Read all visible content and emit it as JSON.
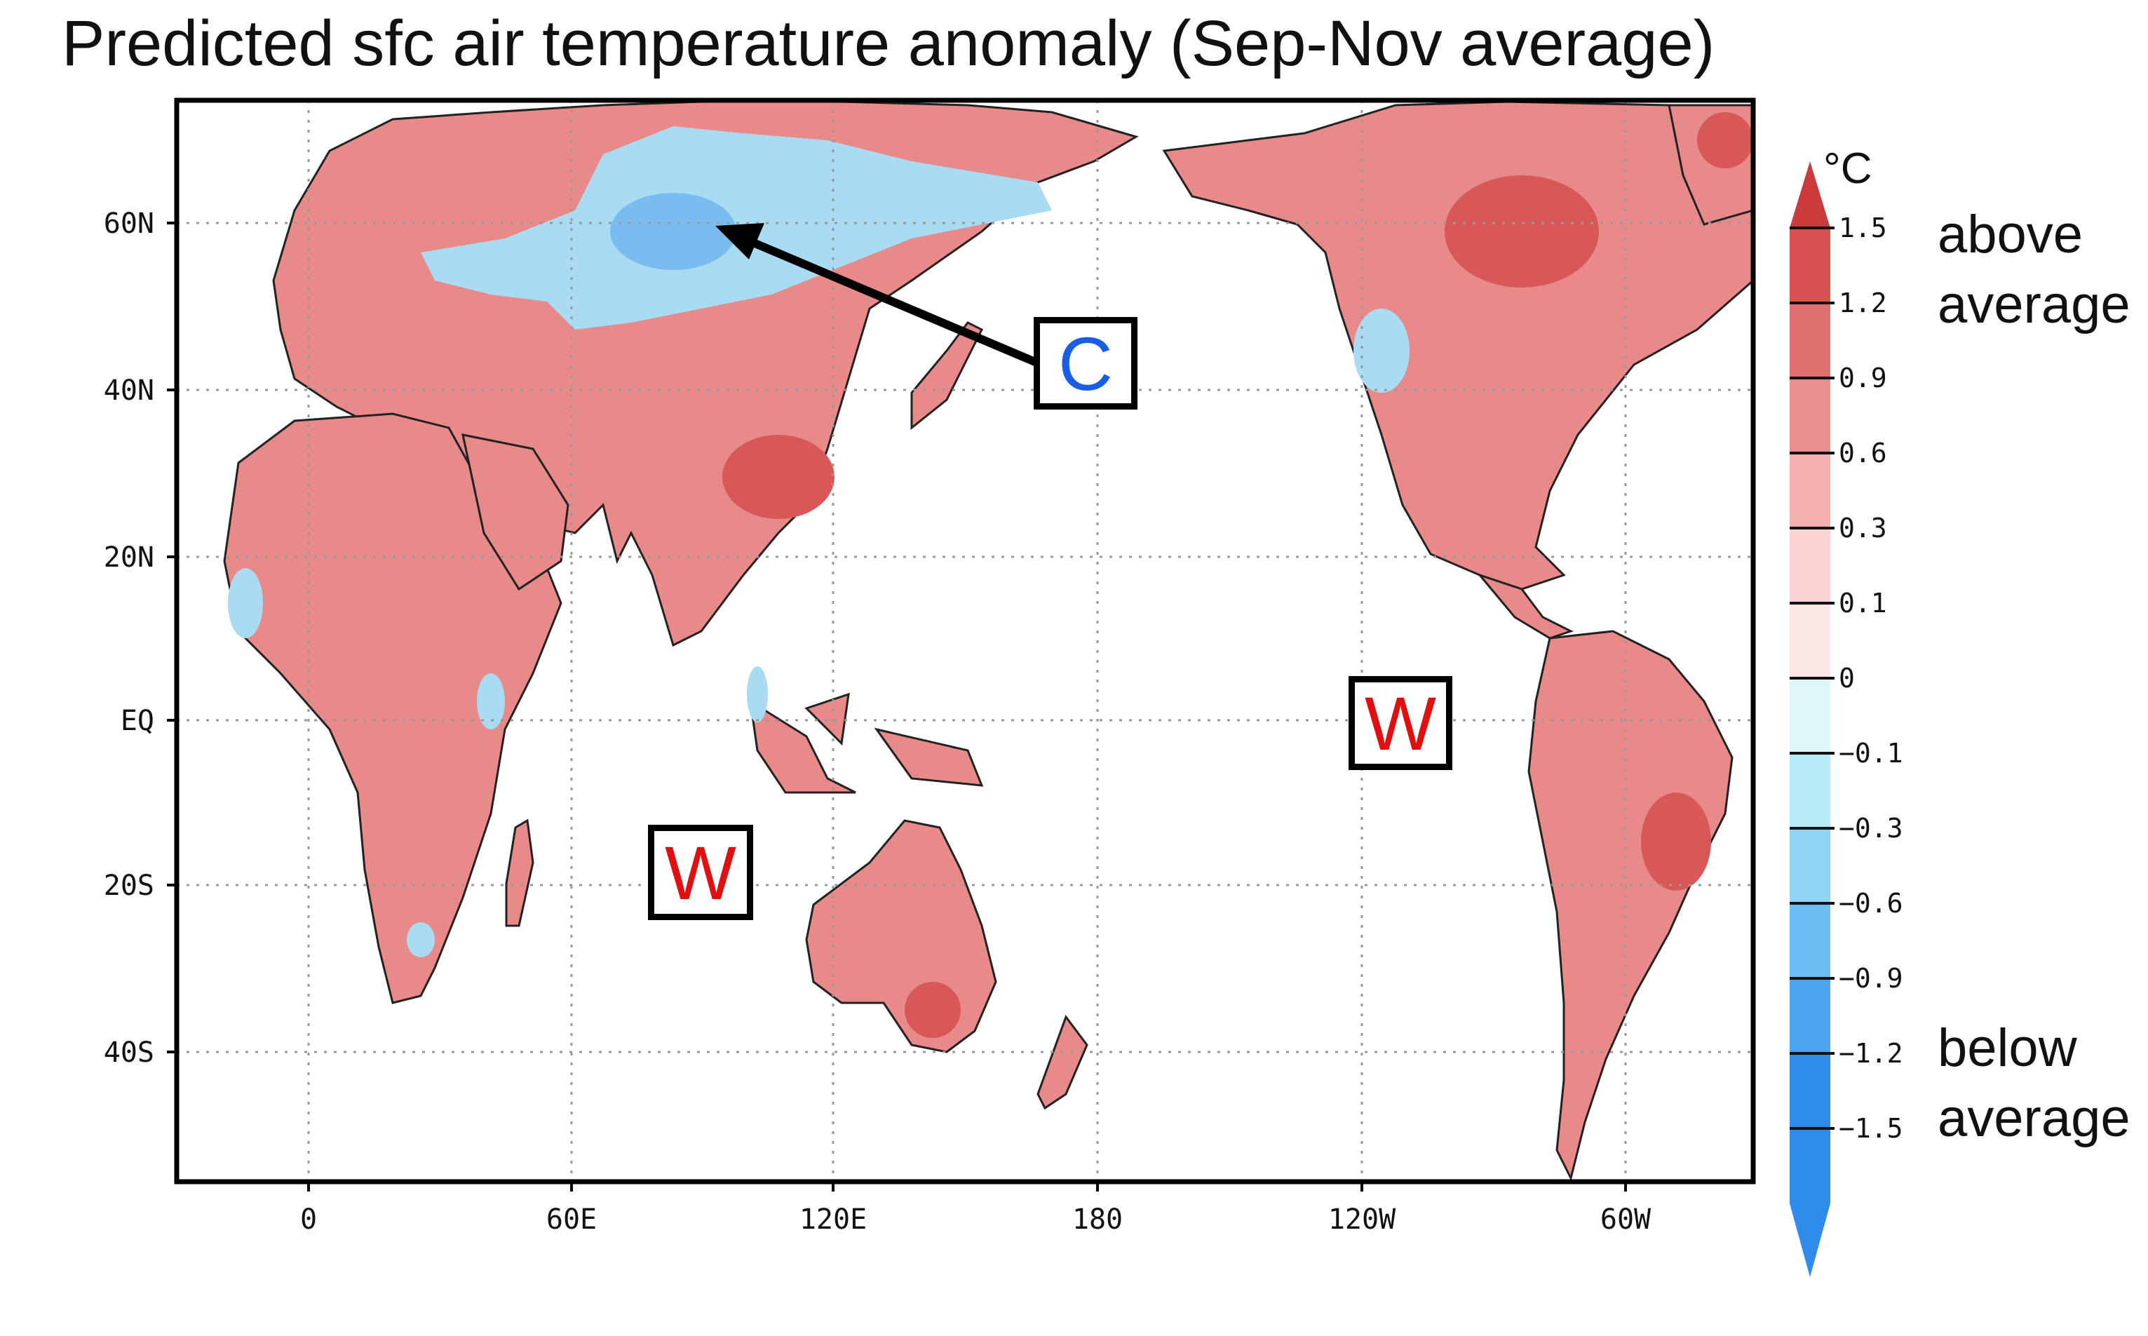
{
  "title": "Predicted sfc air temperature anomaly (Sep-Nov average)",
  "axes": {
    "lat_labels": [
      "60N",
      "40N",
      "20N",
      "EQ",
      "20S",
      "40S"
    ],
    "lon_labels": [
      "0",
      "60E",
      "120E",
      "180",
      "120W",
      "60W"
    ]
  },
  "colorbar": {
    "unit": "°C",
    "levels": [
      "1.5",
      "1.2",
      "0.9",
      "0.6",
      "0.3",
      "0.1",
      "0",
      "−0.1",
      "−0.3",
      "−0.6",
      "−0.9",
      "−1.2",
      "−1.5"
    ],
    "colors": [
      "#cc3b3b",
      "#d85252",
      "#e07070",
      "#ea8f8f",
      "#f4afaf",
      "#fbd3d3",
      "#fde8e8",
      "#dff6fb",
      "#b5ebf8",
      "#8fd3f5",
      "#6bbcf2",
      "#4aa4ee",
      "#2f8ceb",
      "#2f8ceb"
    ],
    "above_label": [
      "above",
      "average"
    ],
    "below_label": [
      "below",
      "average"
    ]
  },
  "annotations": {
    "cold": {
      "letter": "C",
      "color": "#1a5ee8"
    },
    "warm_indian": {
      "letter": "W",
      "color": "#e01010"
    },
    "warm_pacific": {
      "letter": "W",
      "color": "#e01010"
    }
  },
  "map_colors": {
    "warm": "#e88a8a",
    "warm_strong": "#d85858",
    "cool": "#a9dcf3",
    "cool_strong": "#79bdf0",
    "ocean": "#ffffff"
  }
}
